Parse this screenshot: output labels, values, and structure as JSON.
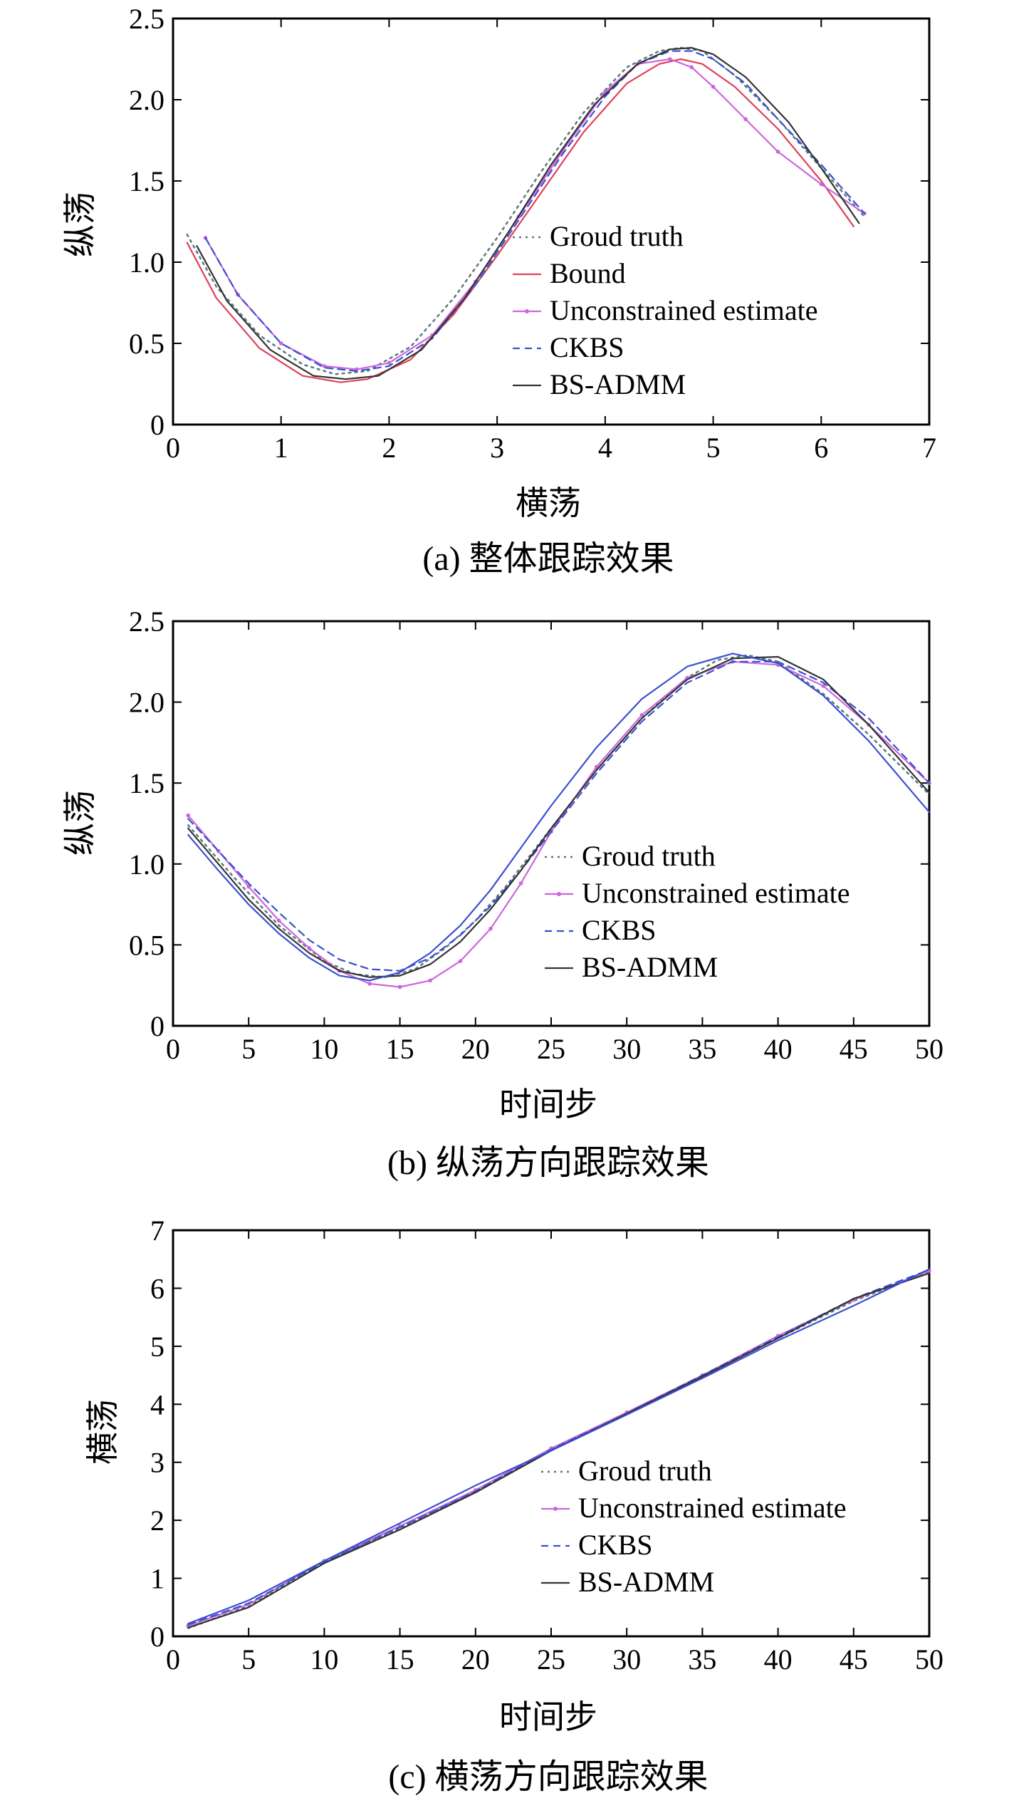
{
  "colors": {
    "truth": "#5a7a7a",
    "bound": "#e0405a",
    "unconstrained": "#cc66dd",
    "ckbs": "#3a4fd0",
    "bsadmm": "#333333"
  },
  "chart_data": [
    {
      "type": "line",
      "caption": "(a) 整体跟踪效果",
      "xlabel": "横荡",
      "ylabel": "纵荡",
      "xlim": [
        0,
        7
      ],
      "ylim": [
        0,
        2.5
      ],
      "xticks": [
        "0",
        "1",
        "2",
        "3",
        "4",
        "5",
        "6",
        "7"
      ],
      "yticks": [
        "0",
        "0.5",
        "1.0",
        "1.5",
        "2.0",
        "2.5"
      ],
      "grid": false,
      "legend_position": "center-right",
      "series": [
        {
          "name": "Groud truth",
          "style": "dotted",
          "color_key": "truth",
          "x": [
            0.13,
            0.4,
            0.8,
            1.2,
            1.5,
            1.8,
            2.2,
            2.6,
            3.0,
            3.4,
            3.8,
            4.2,
            4.5,
            4.7,
            4.9,
            5.2,
            5.6,
            6.0,
            6.4
          ],
          "y": [
            1.17,
            0.85,
            0.55,
            0.37,
            0.31,
            0.33,
            0.48,
            0.78,
            1.15,
            1.55,
            1.92,
            2.2,
            2.3,
            2.32,
            2.3,
            2.15,
            1.88,
            1.58,
            1.28
          ]
        },
        {
          "name": "Bound",
          "style": "solid",
          "color_key": "bound",
          "x": [
            0.13,
            0.4,
            0.8,
            1.2,
            1.55,
            1.8,
            2.2,
            2.6,
            3.0,
            3.4,
            3.8,
            4.2,
            4.5,
            4.7,
            4.9,
            5.2,
            5.6,
            6.0,
            6.3
          ],
          "y": [
            1.12,
            0.78,
            0.47,
            0.3,
            0.26,
            0.28,
            0.4,
            0.68,
            1.04,
            1.42,
            1.8,
            2.1,
            2.22,
            2.25,
            2.22,
            2.08,
            1.82,
            1.5,
            1.22
          ]
        },
        {
          "name": "Unconstrained estimate",
          "style": "solid-marker",
          "color_key": "unconstrained",
          "x": [
            0.3,
            0.6,
            1.0,
            1.4,
            1.7,
            2.0,
            2.4,
            2.8,
            3.2,
            3.6,
            4.0,
            4.3,
            4.6,
            4.8,
            5.0,
            5.3,
            5.6,
            6.0,
            6.4
          ],
          "y": [
            1.15,
            0.8,
            0.5,
            0.36,
            0.34,
            0.38,
            0.55,
            0.88,
            1.28,
            1.68,
            2.05,
            2.22,
            2.25,
            2.2,
            2.08,
            1.88,
            1.68,
            1.48,
            1.3
          ]
        },
        {
          "name": "CKBS",
          "style": "dashed",
          "color_key": "ckbs",
          "x": [
            0.3,
            0.6,
            1.0,
            1.4,
            1.7,
            2.0,
            2.4,
            2.8,
            3.2,
            3.6,
            4.0,
            4.3,
            4.6,
            4.8,
            5.0,
            5.3,
            5.6,
            6.0,
            6.4
          ],
          "y": [
            1.15,
            0.8,
            0.5,
            0.35,
            0.33,
            0.36,
            0.53,
            0.86,
            1.26,
            1.66,
            2.02,
            2.22,
            2.3,
            2.3,
            2.25,
            2.1,
            1.88,
            1.6,
            1.3
          ]
        },
        {
          "name": "BS-ADMM",
          "style": "solid",
          "color_key": "bsadmm",
          "x": [
            0.22,
            0.5,
            0.9,
            1.3,
            1.6,
            1.9,
            2.3,
            2.7,
            3.1,
            3.5,
            3.9,
            4.3,
            4.6,
            4.8,
            5.0,
            5.3,
            5.7,
            6.0,
            6.35
          ],
          "y": [
            1.1,
            0.76,
            0.46,
            0.3,
            0.28,
            0.3,
            0.46,
            0.78,
            1.18,
            1.6,
            1.97,
            2.22,
            2.31,
            2.32,
            2.28,
            2.14,
            1.86,
            1.58,
            1.24
          ]
        }
      ]
    },
    {
      "type": "line",
      "caption": "(b) 纵荡方向跟踪效果",
      "xlabel": "时间步",
      "ylabel": "纵荡",
      "xlim": [
        0,
        50
      ],
      "ylim": [
        0,
        2.5
      ],
      "xticks": [
        "0",
        "5",
        "10",
        "15",
        "20",
        "25",
        "30",
        "35",
        "40",
        "45",
        "50"
      ],
      "yticks": [
        "0",
        "0.5",
        "1.0",
        "1.5",
        "2.0",
        "2.5"
      ],
      "grid": false,
      "legend_position": "bottom-right",
      "series": [
        {
          "name": "Groud truth",
          "style": "dotted",
          "color_key": "truth",
          "x": [
            1,
            4,
            7,
            10,
            12,
            14,
            16,
            18,
            20,
            22,
            25,
            28,
            31,
            34,
            36,
            38,
            40,
            43,
            46,
            50
          ],
          "y": [
            1.24,
            0.92,
            0.62,
            0.4,
            0.32,
            0.3,
            0.35,
            0.48,
            0.65,
            0.86,
            1.22,
            1.58,
            1.9,
            2.15,
            2.26,
            2.29,
            2.25,
            2.05,
            1.8,
            1.43
          ]
        },
        {
          "name": "Unconstrained estimate",
          "style": "solid-marker",
          "color_key": "unconstrained",
          "x": [
            1,
            3,
            5,
            7,
            9,
            11,
            13,
            15,
            17,
            19,
            21,
            23,
            25,
            28,
            31,
            34,
            37,
            40,
            43,
            46,
            50
          ],
          "y": [
            1.3,
            1.08,
            0.86,
            0.65,
            0.48,
            0.34,
            0.26,
            0.24,
            0.28,
            0.4,
            0.6,
            0.88,
            1.2,
            1.6,
            1.92,
            2.15,
            2.25,
            2.23,
            2.1,
            1.86,
            1.5
          ]
        },
        {
          "name": "CKBS",
          "style": "dashed",
          "color_key": "ckbs",
          "x": [
            1,
            3,
            5,
            7,
            9,
            11,
            13,
            15,
            17,
            19,
            21,
            23,
            25,
            28,
            31,
            34,
            37,
            40,
            43,
            46,
            50
          ],
          "y": [
            1.28,
            1.08,
            0.88,
            0.7,
            0.53,
            0.41,
            0.35,
            0.34,
            0.42,
            0.56,
            0.74,
            0.96,
            1.2,
            1.56,
            1.88,
            2.12,
            2.25,
            2.25,
            2.12,
            1.9,
            1.5
          ]
        },
        {
          "name": "BS-ADMM",
          "style": "solid",
          "color_key": "bsadmm",
          "x": [
            1,
            3,
            5,
            7,
            9,
            11,
            13,
            15,
            17,
            19,
            21,
            23,
            25,
            28,
            31,
            34,
            37,
            40,
            43,
            46,
            50
          ],
          "y": [
            1.22,
            1.0,
            0.78,
            0.6,
            0.45,
            0.34,
            0.3,
            0.31,
            0.38,
            0.52,
            0.72,
            0.96,
            1.22,
            1.58,
            1.9,
            2.14,
            2.27,
            2.28,
            2.14,
            1.86,
            1.44
          ]
        },
        {
          "name": "",
          "style": "solid",
          "color_key": "ckbs",
          "x": [
            1,
            3,
            5,
            7,
            9,
            11,
            13,
            15,
            17,
            19,
            21,
            23,
            25,
            28,
            31,
            34,
            37,
            40,
            43,
            46,
            50
          ],
          "y": [
            1.18,
            0.96,
            0.75,
            0.57,
            0.42,
            0.31,
            0.28,
            0.33,
            0.45,
            0.62,
            0.84,
            1.1,
            1.36,
            1.72,
            2.02,
            2.22,
            2.3,
            2.24,
            2.04,
            1.76,
            1.32
          ]
        }
      ]
    },
    {
      "type": "line",
      "caption": "(c) 横荡方向跟踪效果",
      "xlabel": "时间步",
      "ylabel": "横荡",
      "xlim": [
        0,
        50
      ],
      "ylim": [
        0,
        7
      ],
      "xticks": [
        "0",
        "5",
        "10",
        "15",
        "20",
        "25",
        "30",
        "35",
        "40",
        "45",
        "50"
      ],
      "yticks": [
        "0",
        "1",
        "2",
        "3",
        "4",
        "5",
        "6",
        "7"
      ],
      "grid": false,
      "legend_position": "bottom-right",
      "series": [
        {
          "name": "Groud truth",
          "style": "dotted",
          "color_key": "truth",
          "x": [
            1,
            5,
            10,
            15,
            20,
            25,
            30,
            35,
            40,
            45,
            50
          ],
          "y": [
            0.14,
            0.52,
            1.28,
            1.86,
            2.5,
            3.22,
            3.84,
            4.48,
            5.14,
            5.78,
            6.28
          ]
        },
        {
          "name": "Unconstrained estimate",
          "style": "solid-marker",
          "color_key": "unconstrained",
          "x": [
            1,
            5,
            10,
            15,
            20,
            25,
            30,
            35,
            40,
            45,
            50
          ],
          "y": [
            0.18,
            0.55,
            1.3,
            1.9,
            2.52,
            3.24,
            3.86,
            4.5,
            5.18,
            5.8,
            6.3
          ]
        },
        {
          "name": "CKBS",
          "style": "dashed",
          "color_key": "ckbs",
          "x": [
            1,
            5,
            10,
            15,
            20,
            25,
            30,
            35,
            40,
            45,
            50
          ],
          "y": [
            0.2,
            0.57,
            1.28,
            1.88,
            2.5,
            3.22,
            3.84,
            4.5,
            5.16,
            5.82,
            6.32
          ]
        },
        {
          "name": "BS-ADMM",
          "style": "solid",
          "color_key": "bsadmm",
          "x": [
            1,
            5,
            10,
            15,
            20,
            25,
            30,
            35,
            40,
            45,
            50
          ],
          "y": [
            0.15,
            0.5,
            1.26,
            1.84,
            2.48,
            3.2,
            3.84,
            4.48,
            5.14,
            5.82,
            6.26
          ]
        },
        {
          "name": "",
          "style": "solid",
          "color_key": "ckbs",
          "x": [
            1,
            5,
            10,
            15,
            20,
            25,
            30,
            35,
            40,
            45,
            50
          ],
          "y": [
            0.22,
            0.62,
            1.3,
            1.95,
            2.6,
            3.2,
            3.82,
            4.45,
            5.1,
            5.7,
            6.33
          ]
        }
      ]
    }
  ]
}
